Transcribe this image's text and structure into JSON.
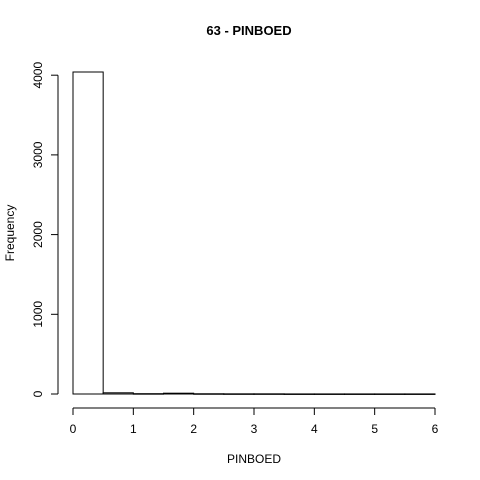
{
  "chart_data": {
    "type": "bar",
    "title": "63 - PINBOED",
    "xlabel": "PINBOED",
    "ylabel": "Frequency",
    "bins": [
      {
        "x0": 0.0,
        "x1": 0.5,
        "count": 4040
      },
      {
        "x0": 0.5,
        "x1": 1.0,
        "count": 15
      },
      {
        "x0": 1.0,
        "x1": 1.5,
        "count": 4
      },
      {
        "x0": 1.5,
        "x1": 2.0,
        "count": 10
      },
      {
        "x0": 2.0,
        "x1": 2.5,
        "count": 3
      },
      {
        "x0": 2.5,
        "x1": 3.0,
        "count": 2
      },
      {
        "x0": 3.0,
        "x1": 3.5,
        "count": 2
      },
      {
        "x0": 3.5,
        "x1": 4.0,
        "count": 1
      },
      {
        "x0": 4.0,
        "x1": 4.5,
        "count": 1
      },
      {
        "x0": 4.5,
        "x1": 5.0,
        "count": 1
      },
      {
        "x0": 5.0,
        "x1": 5.5,
        "count": 1
      },
      {
        "x0": 5.5,
        "x1": 6.0,
        "count": 1
      }
    ],
    "xlim": [
      0,
      6
    ],
    "ylim": [
      0,
      4040
    ],
    "xticks": [
      "0",
      "1",
      "2",
      "3",
      "4",
      "5",
      "6"
    ],
    "yticks": [
      "0",
      "1000",
      "2000",
      "3000",
      "4000"
    ],
    "grid": false
  }
}
